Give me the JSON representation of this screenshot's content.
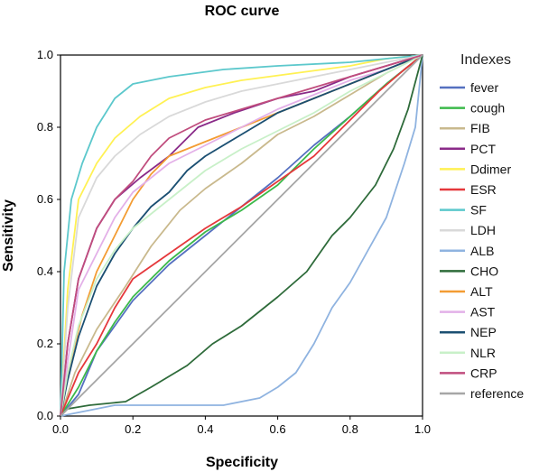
{
  "chart_data": {
    "type": "line",
    "title": "ROC curve",
    "xlabel": "Specificity",
    "ylabel": "Sensitivity",
    "xlim": [
      0,
      1
    ],
    "ylim": [
      0,
      1
    ],
    "x_ticks": [
      "0.0",
      "0.2",
      "0.4",
      "0.6",
      "0.8",
      "1.0"
    ],
    "y_ticks": [
      "0.0",
      "0.2",
      "0.4",
      "0.6",
      "0.8",
      "1.0"
    ],
    "grid": false,
    "legend_title": "Indexes",
    "legend_position": "right",
    "series": [
      {
        "name": "fever",
        "color": "#5570c0",
        "points": [
          [
            0,
            0
          ],
          [
            0.05,
            0.06
          ],
          [
            0.1,
            0.18
          ],
          [
            0.15,
            0.25
          ],
          [
            0.2,
            0.32
          ],
          [
            0.3,
            0.42
          ],
          [
            0.4,
            0.5
          ],
          [
            0.5,
            0.58
          ],
          [
            0.6,
            0.66
          ],
          [
            0.7,
            0.75
          ],
          [
            0.8,
            0.83
          ],
          [
            0.9,
            0.92
          ],
          [
            1,
            1
          ]
        ]
      },
      {
        "name": "cough",
        "color": "#3cb94a",
        "points": [
          [
            0,
            0
          ],
          [
            0.05,
            0.08
          ],
          [
            0.1,
            0.18
          ],
          [
            0.15,
            0.26
          ],
          [
            0.2,
            0.33
          ],
          [
            0.3,
            0.43
          ],
          [
            0.4,
            0.51
          ],
          [
            0.5,
            0.57
          ],
          [
            0.6,
            0.64
          ],
          [
            0.7,
            0.74
          ],
          [
            0.8,
            0.83
          ],
          [
            0.9,
            0.92
          ],
          [
            1,
            1
          ]
        ]
      },
      {
        "name": "FIB",
        "color": "#c9b98d",
        "points": [
          [
            0,
            0
          ],
          [
            0.04,
            0.12
          ],
          [
            0.1,
            0.24
          ],
          [
            0.18,
            0.36
          ],
          [
            0.25,
            0.47
          ],
          [
            0.33,
            0.57
          ],
          [
            0.4,
            0.63
          ],
          [
            0.5,
            0.7
          ],
          [
            0.6,
            0.78
          ],
          [
            0.7,
            0.83
          ],
          [
            0.8,
            0.89
          ],
          [
            0.9,
            0.95
          ],
          [
            1,
            1
          ]
        ]
      },
      {
        "name": "PCT",
        "color": "#8a2a88",
        "points": [
          [
            0,
            0
          ],
          [
            0.02,
            0.2
          ],
          [
            0.05,
            0.38
          ],
          [
            0.1,
            0.52
          ],
          [
            0.15,
            0.6
          ],
          [
            0.22,
            0.66
          ],
          [
            0.3,
            0.72
          ],
          [
            0.38,
            0.8
          ],
          [
            0.48,
            0.84
          ],
          [
            0.6,
            0.88
          ],
          [
            0.7,
            0.9
          ],
          [
            0.8,
            0.94
          ],
          [
            0.9,
            0.97
          ],
          [
            1,
            1
          ]
        ]
      },
      {
        "name": "Ddimer",
        "color": "#fff153",
        "points": [
          [
            0,
            0
          ],
          [
            0.02,
            0.35
          ],
          [
            0.05,
            0.6
          ],
          [
            0.1,
            0.7
          ],
          [
            0.15,
            0.77
          ],
          [
            0.22,
            0.83
          ],
          [
            0.3,
            0.88
          ],
          [
            0.4,
            0.91
          ],
          [
            0.5,
            0.93
          ],
          [
            0.65,
            0.95
          ],
          [
            0.8,
            0.97
          ],
          [
            0.9,
            0.99
          ],
          [
            1,
            1
          ]
        ]
      },
      {
        "name": "ESR",
        "color": "#e5383b",
        "points": [
          [
            0,
            0
          ],
          [
            0.05,
            0.12
          ],
          [
            0.1,
            0.2
          ],
          [
            0.15,
            0.3
          ],
          [
            0.2,
            0.38
          ],
          [
            0.3,
            0.45
          ],
          [
            0.4,
            0.52
          ],
          [
            0.5,
            0.58
          ],
          [
            0.6,
            0.65
          ],
          [
            0.7,
            0.72
          ],
          [
            0.8,
            0.82
          ],
          [
            0.88,
            0.9
          ],
          [
            0.95,
            0.96
          ],
          [
            1,
            1
          ]
        ]
      },
      {
        "name": "SF",
        "color": "#5cc8cc",
        "points": [
          [
            0,
            0
          ],
          [
            0.01,
            0.4
          ],
          [
            0.03,
            0.6
          ],
          [
            0.06,
            0.7
          ],
          [
            0.1,
            0.8
          ],
          [
            0.15,
            0.88
          ],
          [
            0.2,
            0.92
          ],
          [
            0.3,
            0.94
          ],
          [
            0.45,
            0.96
          ],
          [
            0.6,
            0.97
          ],
          [
            0.8,
            0.98
          ],
          [
            1,
            1
          ]
        ]
      },
      {
        "name": "LDH",
        "color": "#d9d9d9",
        "points": [
          [
            0,
            0
          ],
          [
            0.02,
            0.3
          ],
          [
            0.05,
            0.55
          ],
          [
            0.1,
            0.66
          ],
          [
            0.15,
            0.72
          ],
          [
            0.22,
            0.78
          ],
          [
            0.3,
            0.83
          ],
          [
            0.4,
            0.87
          ],
          [
            0.5,
            0.9
          ],
          [
            0.65,
            0.93
          ],
          [
            0.8,
            0.96
          ],
          [
            0.9,
            0.98
          ],
          [
            1,
            1
          ]
        ]
      },
      {
        "name": "ALB",
        "color": "#8fb3e0",
        "points": [
          [
            0,
            0
          ],
          [
            0.05,
            0.01
          ],
          [
            0.15,
            0.03
          ],
          [
            0.3,
            0.03
          ],
          [
            0.45,
            0.03
          ],
          [
            0.55,
            0.05
          ],
          [
            0.6,
            0.08
          ],
          [
            0.65,
            0.12
          ],
          [
            0.7,
            0.2
          ],
          [
            0.75,
            0.3
          ],
          [
            0.8,
            0.37
          ],
          [
            0.85,
            0.46
          ],
          [
            0.9,
            0.55
          ],
          [
            0.95,
            0.7
          ],
          [
            0.98,
            0.8
          ],
          [
            1,
            1
          ]
        ]
      },
      {
        "name": "CHO",
        "color": "#2e6b3a",
        "points": [
          [
            0,
            0
          ],
          [
            0.02,
            0.02
          ],
          [
            0.08,
            0.03
          ],
          [
            0.18,
            0.04
          ],
          [
            0.25,
            0.08
          ],
          [
            0.35,
            0.14
          ],
          [
            0.42,
            0.2
          ],
          [
            0.5,
            0.25
          ],
          [
            0.6,
            0.33
          ],
          [
            0.68,
            0.4
          ],
          [
            0.75,
            0.5
          ],
          [
            0.8,
            0.55
          ],
          [
            0.87,
            0.64
          ],
          [
            0.92,
            0.74
          ],
          [
            0.96,
            0.85
          ],
          [
            1,
            1
          ]
        ]
      },
      {
        "name": "ALT",
        "color": "#f39c33",
        "points": [
          [
            0,
            0
          ],
          [
            0.02,
            0.12
          ],
          [
            0.06,
            0.28
          ],
          [
            0.1,
            0.4
          ],
          [
            0.15,
            0.5
          ],
          [
            0.2,
            0.6
          ],
          [
            0.25,
            0.67
          ],
          [
            0.3,
            0.72
          ],
          [
            0.4,
            0.76
          ],
          [
            0.5,
            0.8
          ],
          [
            0.6,
            0.84
          ],
          [
            0.7,
            0.88
          ],
          [
            0.8,
            0.92
          ],
          [
            0.9,
            0.96
          ],
          [
            1,
            1
          ]
        ]
      },
      {
        "name": "AST",
        "color": "#e3b0e8",
        "points": [
          [
            0,
            0
          ],
          [
            0.02,
            0.15
          ],
          [
            0.05,
            0.35
          ],
          [
            0.1,
            0.45
          ],
          [
            0.15,
            0.55
          ],
          [
            0.2,
            0.62
          ],
          [
            0.3,
            0.7
          ],
          [
            0.4,
            0.75
          ],
          [
            0.5,
            0.8
          ],
          [
            0.6,
            0.85
          ],
          [
            0.7,
            0.89
          ],
          [
            0.8,
            0.93
          ],
          [
            0.9,
            0.96
          ],
          [
            1,
            1
          ]
        ]
      },
      {
        "name": "NEP",
        "color": "#1b4f72",
        "points": [
          [
            0,
            0
          ],
          [
            0.02,
            0.1
          ],
          [
            0.05,
            0.22
          ],
          [
            0.1,
            0.36
          ],
          [
            0.15,
            0.45
          ],
          [
            0.2,
            0.52
          ],
          [
            0.25,
            0.58
          ],
          [
            0.3,
            0.62
          ],
          [
            0.35,
            0.68
          ],
          [
            0.4,
            0.72
          ],
          [
            0.5,
            0.78
          ],
          [
            0.6,
            0.84
          ],
          [
            0.7,
            0.88
          ],
          [
            0.8,
            0.92
          ],
          [
            0.9,
            0.96
          ],
          [
            1,
            1
          ]
        ]
      },
      {
        "name": "NLR",
        "color": "#c8f0c8",
        "points": [
          [
            0,
            0
          ],
          [
            0.02,
            0.12
          ],
          [
            0.05,
            0.25
          ],
          [
            0.1,
            0.38
          ],
          [
            0.15,
            0.46
          ],
          [
            0.2,
            0.52
          ],
          [
            0.25,
            0.56
          ],
          [
            0.3,
            0.6
          ],
          [
            0.4,
            0.68
          ],
          [
            0.5,
            0.74
          ],
          [
            0.6,
            0.79
          ],
          [
            0.7,
            0.84
          ],
          [
            0.8,
            0.9
          ],
          [
            0.9,
            0.95
          ],
          [
            1,
            1
          ]
        ]
      },
      {
        "name": "CRP",
        "color": "#c04d7e",
        "points": [
          [
            0,
            0
          ],
          [
            0.02,
            0.2
          ],
          [
            0.05,
            0.38
          ],
          [
            0.1,
            0.52
          ],
          [
            0.15,
            0.6
          ],
          [
            0.2,
            0.65
          ],
          [
            0.25,
            0.72
          ],
          [
            0.3,
            0.77
          ],
          [
            0.4,
            0.82
          ],
          [
            0.5,
            0.85
          ],
          [
            0.6,
            0.88
          ],
          [
            0.7,
            0.91
          ],
          [
            0.8,
            0.94
          ],
          [
            0.9,
            0.97
          ],
          [
            1,
            1
          ]
        ]
      },
      {
        "name": "reference",
        "color": "#a6a6a6",
        "points": [
          [
            0,
            0
          ],
          [
            1,
            1
          ]
        ]
      }
    ]
  }
}
